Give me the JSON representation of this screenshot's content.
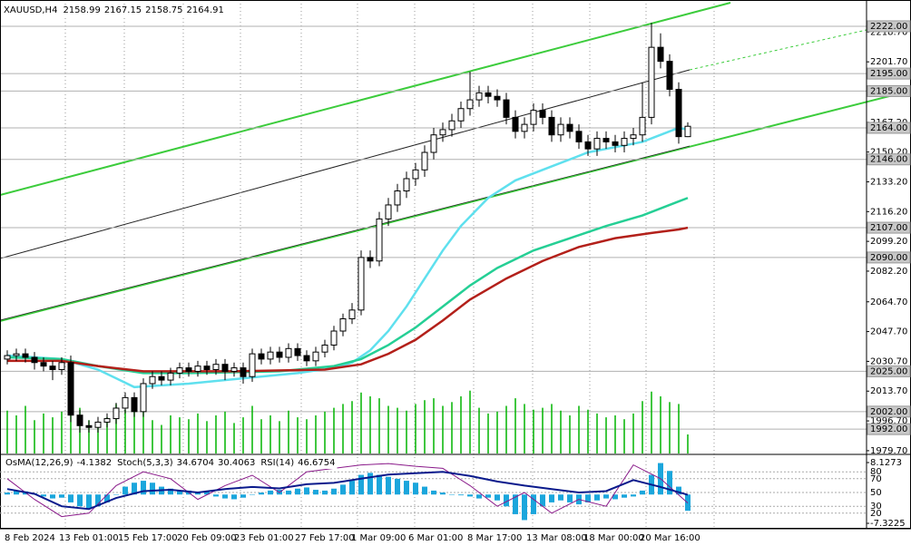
{
  "chart_data": {
    "type": "candlestick",
    "symbol": "XAUUSD,H4",
    "open": [
      2032,
      2034,
      2035,
      2033,
      2030,
      2028,
      2026,
      2030,
      2000,
      1994,
      1993,
      1996,
      1998,
      2004,
      2010,
      2002,
      2018,
      2022,
      2020,
      2024,
      2027,
      2025,
      2028,
      2026,
      2029,
      2025,
      2027,
      2022,
      2035,
      2032,
      2036,
      2033,
      2038,
      2034,
      2031,
      2036,
      2040,
      2048,
      2055,
      2060,
      2090,
      2088,
      2112,
      2120,
      2128,
      2135,
      2140,
      2150,
      2160,
      2163,
      2168,
      2175,
      2180,
      2184,
      2182,
      2180,
      2170,
      2162,
      2166,
      2174,
      2170,
      2160,
      2166,
      2162,
      2156,
      2152,
      2158,
      2156,
      2154,
      2158,
      2160,
      2170,
      2210,
      2202,
      2186,
      2158.99
    ],
    "high": [
      2037,
      2038,
      2038,
      2036,
      2033,
      2031,
      2033,
      2034,
      2003,
      1997,
      1999,
      2001,
      2007,
      2013,
      2013,
      2021,
      2025,
      2025,
      2027,
      2030,
      2030,
      2031,
      2031,
      2032,
      2032,
      2030,
      2030,
      2038,
      2038,
      2039,
      2039,
      2041,
      2041,
      2037,
      2039,
      2043,
      2051,
      2058,
      2064,
      2094,
      2094,
      2116,
      2124,
      2132,
      2139,
      2144,
      2154,
      2164,
      2167,
      2172,
      2179,
      2196,
      2188,
      2188,
      2186,
      2184,
      2174,
      2170,
      2178,
      2178,
      2174,
      2170,
      2170,
      2166,
      2160,
      2162,
      2162,
      2160,
      2162,
      2164,
      2190,
      2224,
      2218,
      2206,
      2190,
      2167.15
    ],
    "low": [
      2029,
      2031,
      2030,
      2026,
      2025,
      2020,
      2023,
      1996,
      1990,
      1990,
      1990,
      1993,
      1995,
      2001,
      1999,
      1999,
      2015,
      2017,
      2017,
      2021,
      2022,
      2022,
      2023,
      2023,
      2020,
      2022,
      2018,
      2019,
      2029,
      2029,
      2030,
      2030,
      2031,
      2028,
      2028,
      2033,
      2037,
      2045,
      2052,
      2057,
      2084,
      2085,
      2108,
      2116,
      2124,
      2131,
      2136,
      2146,
      2156,
      2159,
      2164,
      2171,
      2176,
      2178,
      2176,
      2166,
      2158,
      2158,
      2162,
      2166,
      2156,
      2156,
      2158,
      2152,
      2148,
      2148,
      2152,
      2150,
      2150,
      2154,
      2156,
      2166,
      2198,
      2182,
      2155,
      2158.75
    ],
    "close": [
      2034,
      2035,
      2033,
      2030,
      2028,
      2026,
      2030,
      2000,
      1994,
      1993,
      1996,
      1998,
      2004,
      2010,
      2002,
      2018,
      2022,
      2020,
      2024,
      2027,
      2025,
      2028,
      2026,
      2029,
      2025,
      2027,
      2022,
      2035,
      2032,
      2036,
      2033,
      2038,
      2034,
      2031,
      2036,
      2040,
      2048,
      2055,
      2060,
      2090,
      2088,
      2112,
      2120,
      2128,
      2135,
      2140,
      2150,
      2160,
      2163,
      2168,
      2175,
      2180,
      2184,
      2182,
      2180,
      2170,
      2162,
      2166,
      2174,
      2170,
      2160,
      2166,
      2162,
      2156,
      2152,
      2158,
      2156,
      2154,
      2158,
      2160,
      2170,
      2210,
      2202,
      2186,
      2158.99,
      2164.91
    ],
    "volume": [
      45,
      40,
      50,
      35,
      42,
      38,
      44,
      60,
      48,
      35,
      30,
      38,
      52,
      46,
      55,
      50,
      35,
      30,
      40,
      38,
      36,
      42,
      34,
      40,
      44,
      32,
      38,
      50,
      36,
      40,
      34,
      45,
      38,
      36,
      40,
      44,
      48,
      52,
      55,
      64,
      60,
      58,
      50,
      48,
      45,
      52,
      56,
      58,
      50,
      54,
      60,
      66,
      48,
      42,
      44,
      50,
      58,
      52,
      46,
      48,
      52,
      45,
      40,
      50,
      46,
      42,
      38,
      40,
      36,
      42,
      55,
      65,
      60,
      54,
      52,
      20
    ],
    "volume_color": "#00b400",
    "ylim": [
      1978.1,
      2237.0
    ],
    "yticks": [
      {
        "value": 2218.7,
        "label": "2218.70"
      },
      {
        "value": 2201.7,
        "label": "2201.70"
      },
      {
        "value": 2167.2,
        "label": "2167.20"
      },
      {
        "value": 2150.2,
        "label": "2150.20"
      },
      {
        "value": 2133.2,
        "label": "2133.20"
      },
      {
        "value": 2116.2,
        "label": "2116.20"
      },
      {
        "value": 2099.2,
        "label": "2099.20"
      },
      {
        "value": 2082.2,
        "label": "2082.20"
      },
      {
        "value": 2064.7,
        "label": "2064.70"
      },
      {
        "value": 2047.7,
        "label": "2047.70"
      },
      {
        "value": 2030.7,
        "label": "2030.70"
      },
      {
        "value": 2013.7,
        "label": "2013.70"
      },
      {
        "value": 1996.7,
        "label": "1996.70"
      },
      {
        "value": 1979.7,
        "label": "1979.70"
      }
    ],
    "levels": [
      {
        "value": 2222,
        "label": "2222.00"
      },
      {
        "value": 2195,
        "label": "2195.00"
      },
      {
        "value": 2185,
        "label": "2185.00"
      },
      {
        "value": 2164,
        "label": "2164.00"
      },
      {
        "value": 2146,
        "label": "2146.00"
      },
      {
        "value": 2107,
        "label": "2107.00"
      },
      {
        "value": 2090,
        "label": "2090.00"
      },
      {
        "value": 2025,
        "label": "2025.00"
      },
      {
        "value": 2002,
        "label": "2002.00"
      },
      {
        "value": 1992,
        "label": "1992.00"
      }
    ],
    "moving_averages": [
      {
        "color": "#5fe0ee",
        "x": [
          0,
          6,
          10,
          14,
          20,
          26,
          32,
          36,
          38,
          40,
          42,
          44,
          46,
          48,
          50,
          53,
          56,
          60,
          64,
          68,
          70,
          72,
          74,
          75
        ],
        "values": [
          2034,
          2032,
          2026,
          2016,
          2018,
          2021,
          2024,
          2027,
          2030,
          2037,
          2048,
          2062,
          2078,
          2094,
          2108,
          2124,
          2134,
          2142,
          2150,
          2154,
          2156,
          2160,
          2164,
          2163
        ]
      },
      {
        "color": "#25cf95",
        "x": [
          0,
          6,
          10,
          15,
          20,
          30,
          36,
          39,
          42,
          45,
          48,
          51,
          54,
          58,
          62,
          66,
          70,
          74,
          75
        ],
        "values": [
          2033,
          2032,
          2028,
          2024,
          2024,
          2025,
          2028,
          2032,
          2040,
          2050,
          2062,
          2074,
          2084,
          2094,
          2101,
          2108,
          2114,
          2122,
          2124
        ]
      },
      {
        "color": "#b3201a",
        "x": [
          0,
          6,
          10,
          15,
          25,
          35,
          39,
          42,
          45,
          48,
          51,
          55,
          59,
          63,
          67,
          71,
          74,
          75
        ],
        "values": [
          2031,
          2031,
          2028,
          2025,
          2025,
          2026,
          2029,
          2035,
          2043,
          2054,
          2066,
          2078,
          2088,
          2096,
          2101,
          2104,
          2106,
          2107
        ]
      }
    ],
    "x_labels": [
      "8 Feb 2024",
      "13 Feb 01:00",
      "15 Feb 17:00",
      "20 Feb 09:00",
      "23 Feb 01:00",
      "27 Feb 17:00",
      "1 Mar 09:00",
      "6 Mar 01:00",
      "8 Mar 17:00",
      "13 Mar 08:00",
      "18 Mar 00:00",
      "20 Mar 16:00"
    ],
    "oscillator": {
      "osma": {
        "name": "OsMA(12,26,9)",
        "color": "#1ba6dc",
        "values": [
          0.5,
          1,
          0.8,
          0.3,
          -0.5,
          -1,
          -0.8,
          -2,
          -3,
          -3.5,
          -3,
          -2,
          0,
          2,
          3,
          3.5,
          3,
          2,
          1.5,
          1,
          1,
          0.5,
          0.8,
          -0.5,
          -1,
          -1.2,
          -0.8,
          0,
          0.5,
          1,
          1.2,
          1,
          1.5,
          1.8,
          1.2,
          1,
          1.5,
          2.5,
          3.5,
          5,
          5.5,
          5,
          4.5,
          4,
          3.5,
          3,
          2,
          1,
          0.5,
          0,
          -0.2,
          -0.5,
          -1,
          -0.8,
          -1.5,
          -3,
          -5,
          -6.5,
          -5,
          -3,
          -2,
          -1.5,
          -2,
          -2.5,
          -2,
          -1.5,
          -1,
          -1.2,
          -0.8,
          -0.5,
          1,
          5,
          8,
          6,
          2,
          -4.1382
        ]
      },
      "osma_lim": [
        -7.3225,
        8.1273
      ],
      "osma_ticks": [
        8.1273,
        -7.3225
      ],
      "stoch": {
        "name": "Stoch(5,3,3)",
        "color": "#8a1a8a",
        "x": [
          0,
          3,
          6,
          9,
          12,
          15,
          18,
          21,
          24,
          27,
          30,
          33,
          36,
          39,
          42,
          45,
          48,
          51,
          54,
          57,
          60,
          63,
          66,
          69,
          72,
          75
        ],
        "values": [
          70,
          40,
          15,
          20,
          60,
          80,
          70,
          40,
          60,
          75,
          50,
          80,
          85,
          90,
          92,
          88,
          85,
          60,
          30,
          50,
          20,
          40,
          30,
          90,
          70,
          34.6704
        ],
        "signal": 30.4063
      },
      "rsi": {
        "name": "RSI(14)",
        "color": "#0a1a8c",
        "x": [
          0,
          3,
          6,
          9,
          12,
          15,
          18,
          21,
          24,
          27,
          30,
          33,
          36,
          39,
          42,
          45,
          48,
          51,
          54,
          57,
          60,
          63,
          66,
          69,
          72,
          75
        ],
        "values": [
          55,
          48,
          30,
          26,
          42,
          52,
          54,
          50,
          55,
          58,
          56,
          62,
          64,
          70,
          76,
          78,
          80,
          74,
          66,
          60,
          55,
          50,
          52,
          68,
          58,
          46.6754
        ]
      },
      "ylim": [
        0,
        100
      ],
      "yticks": [
        80,
        70,
        50,
        30,
        20
      ]
    }
  }
}
